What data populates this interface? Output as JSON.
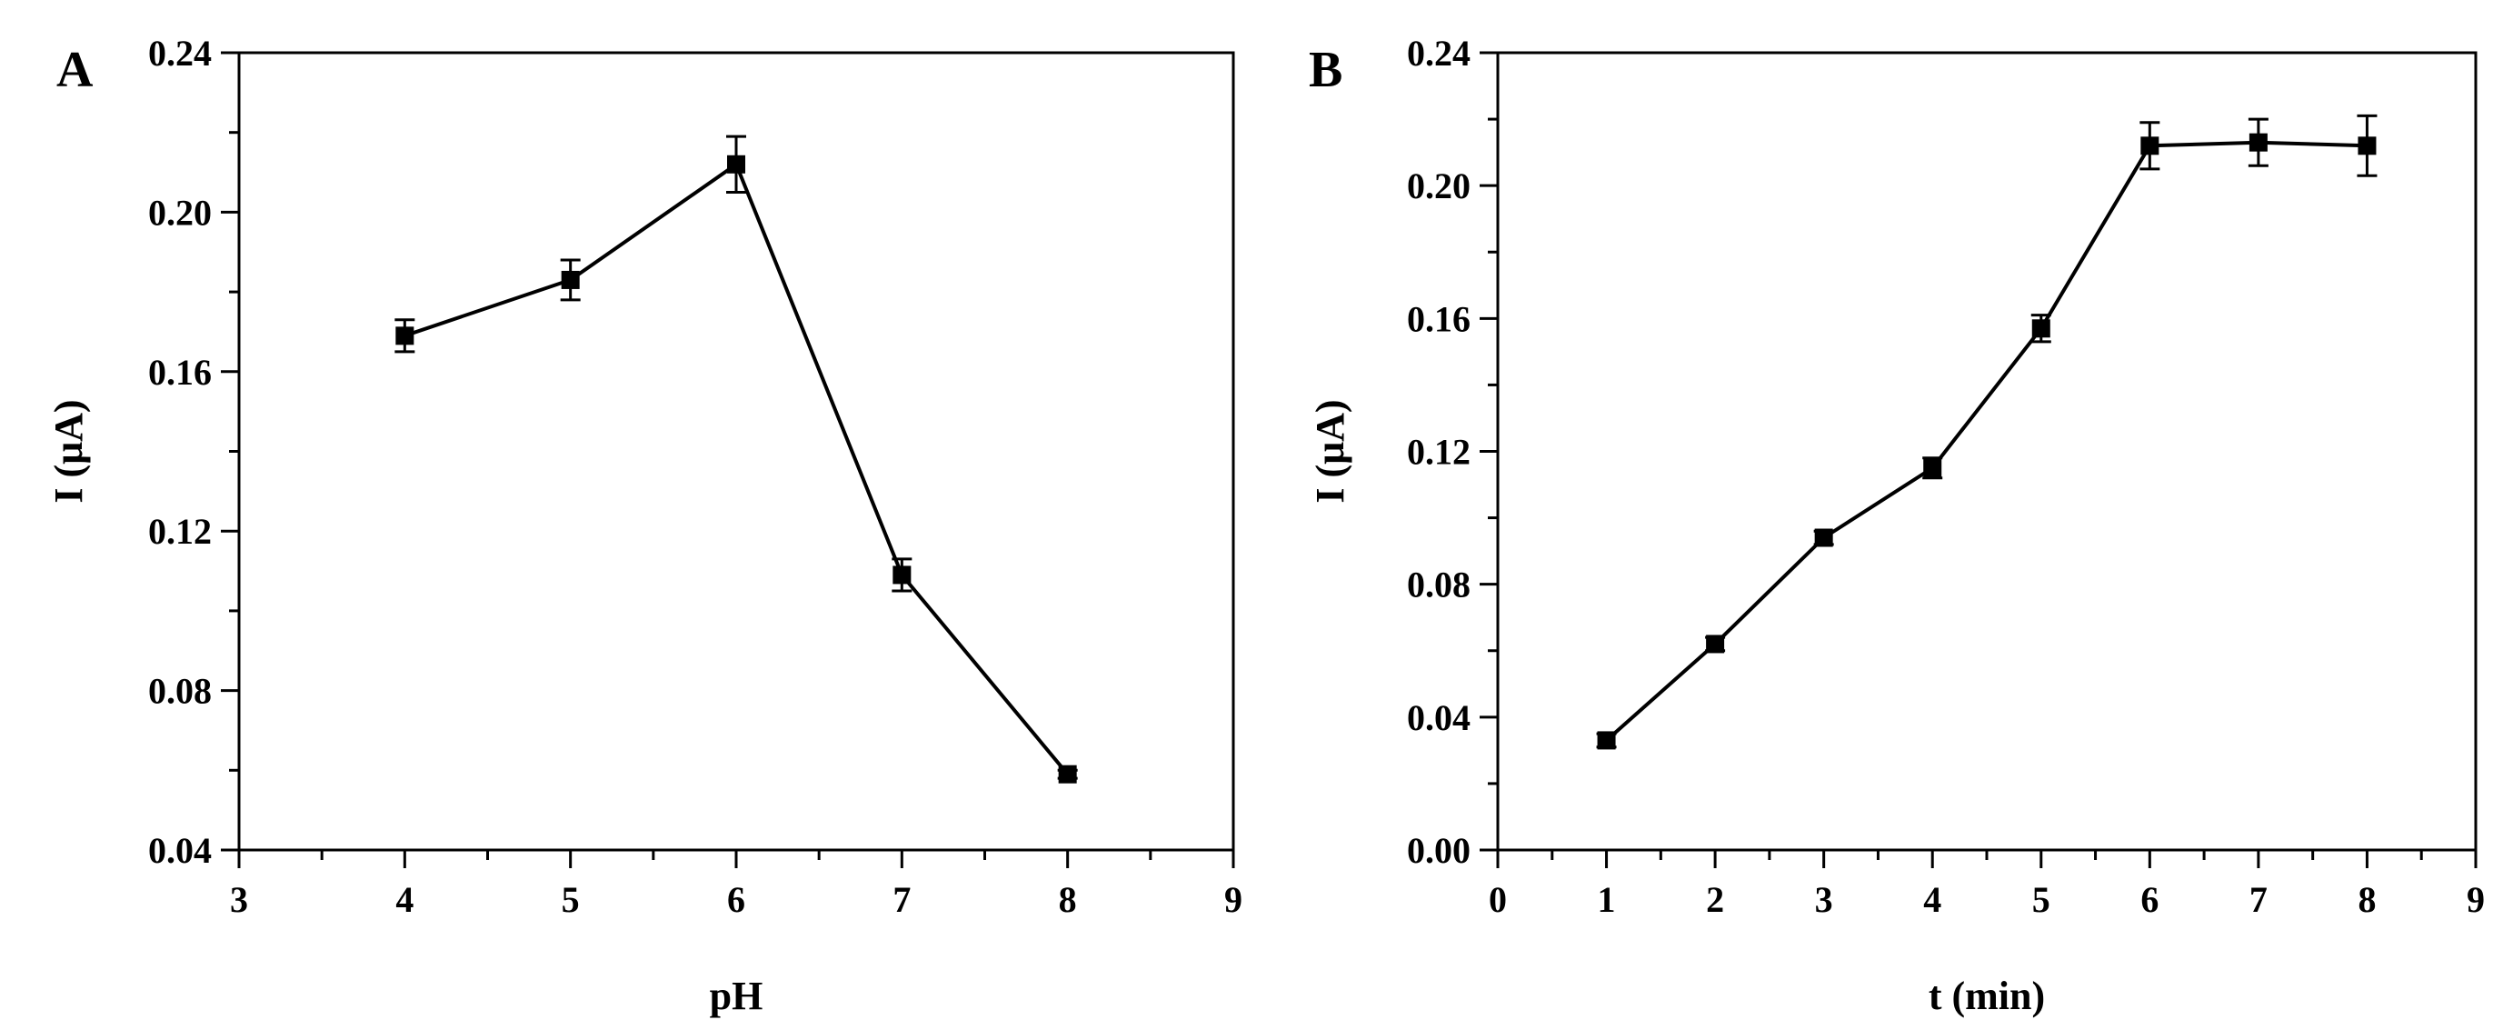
{
  "chart_data": [
    {
      "type": "line",
      "panel_label": "A",
      "xlabel": "pH",
      "ylabel": "I (μA)",
      "xlim": [
        3,
        9
      ],
      "ylim": [
        0.04,
        0.24
      ],
      "xticks": [
        "3",
        "4",
        "5",
        "6",
        "7",
        "8",
        "9"
      ],
      "yticks": [
        "0.04",
        "0.08",
        "0.12",
        "0.16",
        "0.20",
        "0.24"
      ],
      "grid": false,
      "series": [
        {
          "x": [
            4,
            5,
            6,
            7,
            8
          ],
          "y": [
            0.169,
            0.183,
            0.212,
            0.109,
            0.059
          ],
          "error": [
            0.004,
            0.005,
            0.007,
            0.004,
            0.001
          ],
          "marker": "square"
        }
      ]
    },
    {
      "type": "line",
      "panel_label": "B",
      "xlabel": "t (min)",
      "ylabel": "I (μA)",
      "xlim": [
        0,
        9
      ],
      "ylim": [
        0,
        0.24
      ],
      "xticks": [
        "0",
        "1",
        "2",
        "3",
        "4",
        "5",
        "6",
        "7",
        "8",
        "9"
      ],
      "yticks": [
        "0.00",
        "0.04",
        "0.08",
        "0.12",
        "0.16",
        "0.20",
        "0.24"
      ],
      "grid": false,
      "series": [
        {
          "x": [
            1,
            2,
            3,
            4,
            5,
            6,
            7,
            8
          ],
          "y": [
            0.033,
            0.062,
            0.094,
            0.115,
            0.157,
            0.212,
            0.213,
            0.212
          ],
          "error": [
            0.002,
            0.002,
            0.002,
            0.003,
            0.004,
            0.007,
            0.007,
            0.009
          ],
          "marker": "square"
        }
      ]
    }
  ]
}
